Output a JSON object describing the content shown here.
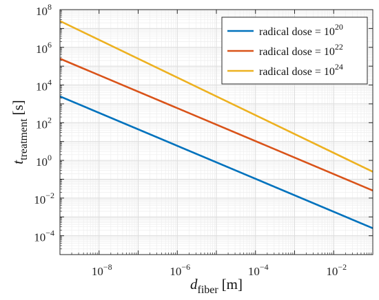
{
  "chart_data": {
    "type": "line",
    "x_scale": "log",
    "y_scale": "log",
    "xlim": [
      1e-09,
      0.1
    ],
    "ylim": [
      1e-05,
      100000000.0
    ],
    "grid": true,
    "minor_grid": true,
    "legend_position": "top-right",
    "xlabel": {
      "symbol": "d",
      "subscript": "fiber",
      "unit": "[m]"
    },
    "ylabel": {
      "symbol": "t",
      "subscript": "treatment",
      "unit": "[s]"
    },
    "x_ticks": [
      {
        "base": "10",
        "exp": "−8",
        "value": 1e-08
      },
      {
        "base": "10",
        "exp": "−6",
        "value": 1e-06
      },
      {
        "base": "10",
        "exp": "−4",
        "value": 0.0001
      },
      {
        "base": "10",
        "exp": "−2",
        "value": 0.01
      }
    ],
    "y_ticks": [
      {
        "base": "10",
        "exp": "8",
        "value": 100000000.0
      },
      {
        "base": "10",
        "exp": "6",
        "value": 1000000.0
      },
      {
        "base": "10",
        "exp": "4",
        "value": 10000.0
      },
      {
        "base": "10",
        "exp": "2",
        "value": 100.0
      },
      {
        "base": "10",
        "exp": "0",
        "value": 1
      },
      {
        "base": "10",
        "exp": "−2",
        "value": 0.01
      },
      {
        "base": "10",
        "exp": "−4",
        "value": 0.0001
      }
    ],
    "series": [
      {
        "name_prefix": "radical dose = 10",
        "name_exp": "20",
        "color": "#0072BD",
        "x": [
          1e-09,
          0.1
        ],
        "y": [
          2500,
          0.00025
        ]
      },
      {
        "name_prefix": "radical dose = 10",
        "name_exp": "22",
        "color": "#D95319",
        "x": [
          1e-09,
          0.1
        ],
        "y": [
          250000,
          0.025
        ]
      },
      {
        "name_prefix": "radical dose = 10",
        "name_exp": "24",
        "color": "#EDB120",
        "x": [
          1e-09,
          0.1
        ],
        "y": [
          25000000,
          0.25
        ]
      }
    ]
  }
}
